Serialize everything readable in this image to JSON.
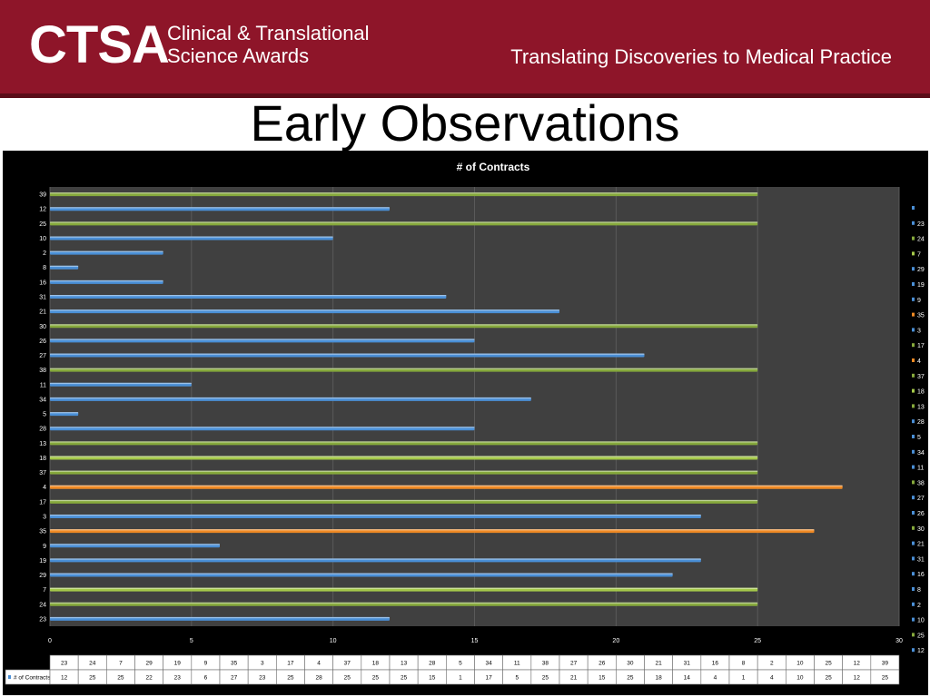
{
  "header": {
    "logo_mark": "CTSA",
    "logo_line1": "Clinical & Translational",
    "logo_line2": "Science Awards",
    "tagline": "Translating Discoveries to Medical Practice",
    "bg_color": "#8e1529"
  },
  "slide_title": "Early Observations",
  "chart_data": {
    "type": "bar",
    "orientation": "horizontal",
    "title": "# of Contracts",
    "xlabel": "",
    "ylabel": "",
    "xlim": [
      0,
      30
    ],
    "xticks": [
      0,
      5,
      10,
      15,
      20,
      25,
      30
    ],
    "grid": true,
    "legend_placement": "right",
    "categories": [
      "23",
      "24",
      "7",
      "29",
      "19",
      "9",
      "35",
      "3",
      "17",
      "4",
      "37",
      "18",
      "13",
      "28",
      "5",
      "34",
      "11",
      "38",
      "27",
      "26",
      "30",
      "21",
      "31",
      "16",
      "8",
      "2",
      "10",
      "25",
      "12",
      "39"
    ],
    "values": [
      12,
      25,
      25,
      22,
      23,
      6,
      27,
      23,
      25,
      28,
      25,
      25,
      25,
      15,
      1,
      17,
      5,
      25,
      21,
      15,
      25,
      18,
      14,
      4,
      1,
      4,
      10,
      25,
      12,
      25
    ],
    "bar_colors": [
      "#4a8fd6",
      "#86a93c",
      "#a5c94a",
      "#4a8fd6",
      "#4a8fd6",
      "#4a8fd6",
      "#f08a24",
      "#4a8fd6",
      "#86a93c",
      "#f08a24",
      "#86a93c",
      "#a5c94a",
      "#86a93c",
      "#4a8fd6",
      "#4a8fd6",
      "#4a8fd6",
      "#4a8fd6",
      "#86a93c",
      "#4a8fd6",
      "#4a8fd6",
      "#86a93c",
      "#4a8fd6",
      "#4a8fd6",
      "#4a8fd6",
      "#4a8fd6",
      "#4a8fd6",
      "#4a8fd6",
      "#86a93c",
      "#4a8fd6",
      "#86a93c"
    ],
    "legend_entries": [
      "",
      "23",
      "24",
      "7",
      "29",
      "19",
      "9",
      "35",
      "3",
      "17",
      "4",
      "37",
      "18",
      "13",
      "28",
      "5",
      "34",
      "11",
      "38",
      "27",
      "26",
      "30",
      "21",
      "31",
      "16",
      "8",
      "2",
      "10",
      "25",
      "12"
    ],
    "legend_colors": [
      "#4a8fd6",
      "#4a8fd6",
      "#86a93c",
      "#a5c94a",
      "#4a8fd6",
      "#4a8fd6",
      "#4a8fd6",
      "#f08a24",
      "#4a8fd6",
      "#86a93c",
      "#f08a24",
      "#86a93c",
      "#a5c94a",
      "#86a93c",
      "#4a8fd6",
      "#4a8fd6",
      "#4a8fd6",
      "#4a8fd6",
      "#86a93c",
      "#4a8fd6",
      "#4a8fd6",
      "#86a93c",
      "#4a8fd6",
      "#4a8fd6",
      "#4a8fd6",
      "#4a8fd6",
      "#4a8fd6",
      "#4a8fd6",
      "#86a93c",
      "#4a8fd6"
    ],
    "table_row_label": "# of Contracts",
    "colors": {
      "chart_bg": "#000000",
      "plot_bg": "#404040",
      "grid": "#5a5a5a"
    }
  }
}
